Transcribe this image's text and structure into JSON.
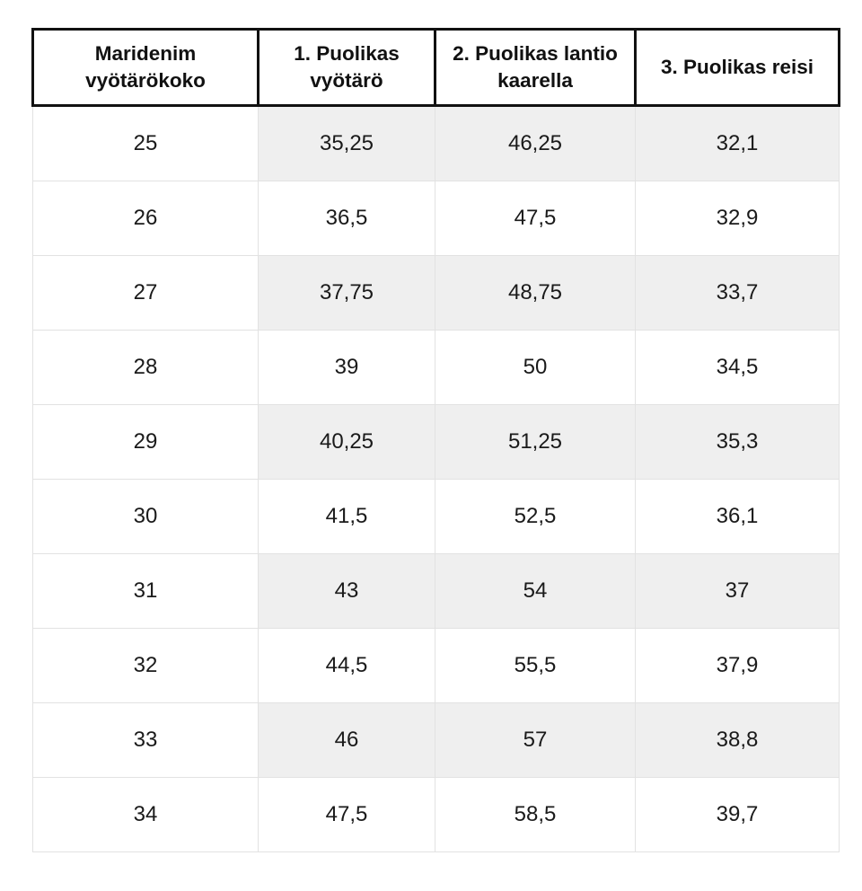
{
  "table": {
    "headers": [
      "Maridenim vyötärökoko",
      "1. Puolikas vyötärö",
      "2. Puolikas lantio kaarella",
      "3. Puolikas reisi"
    ],
    "rows": [
      [
        "25",
        "35,25",
        "46,25",
        "32,1"
      ],
      [
        "26",
        "36,5",
        "47,5",
        "32,9"
      ],
      [
        "27",
        "37,75",
        "48,75",
        "33,7"
      ],
      [
        "28",
        "39",
        "50",
        "34,5"
      ],
      [
        "29",
        "40,25",
        "51,25",
        "35,3"
      ],
      [
        "30",
        "41,5",
        "52,5",
        "36,1"
      ],
      [
        "31",
        "43",
        "54",
        "37"
      ],
      [
        "32",
        "44,5",
        "55,5",
        "37,9"
      ],
      [
        "33",
        "46",
        "57",
        "38,8"
      ],
      [
        "34",
        "47,5",
        "58,5",
        "39,7"
      ]
    ]
  },
  "colors": {
    "header_border": "#111111",
    "grid_line": "#e2e2e2",
    "shaded_cell": "#efefef",
    "text": "#1a1a1a"
  }
}
